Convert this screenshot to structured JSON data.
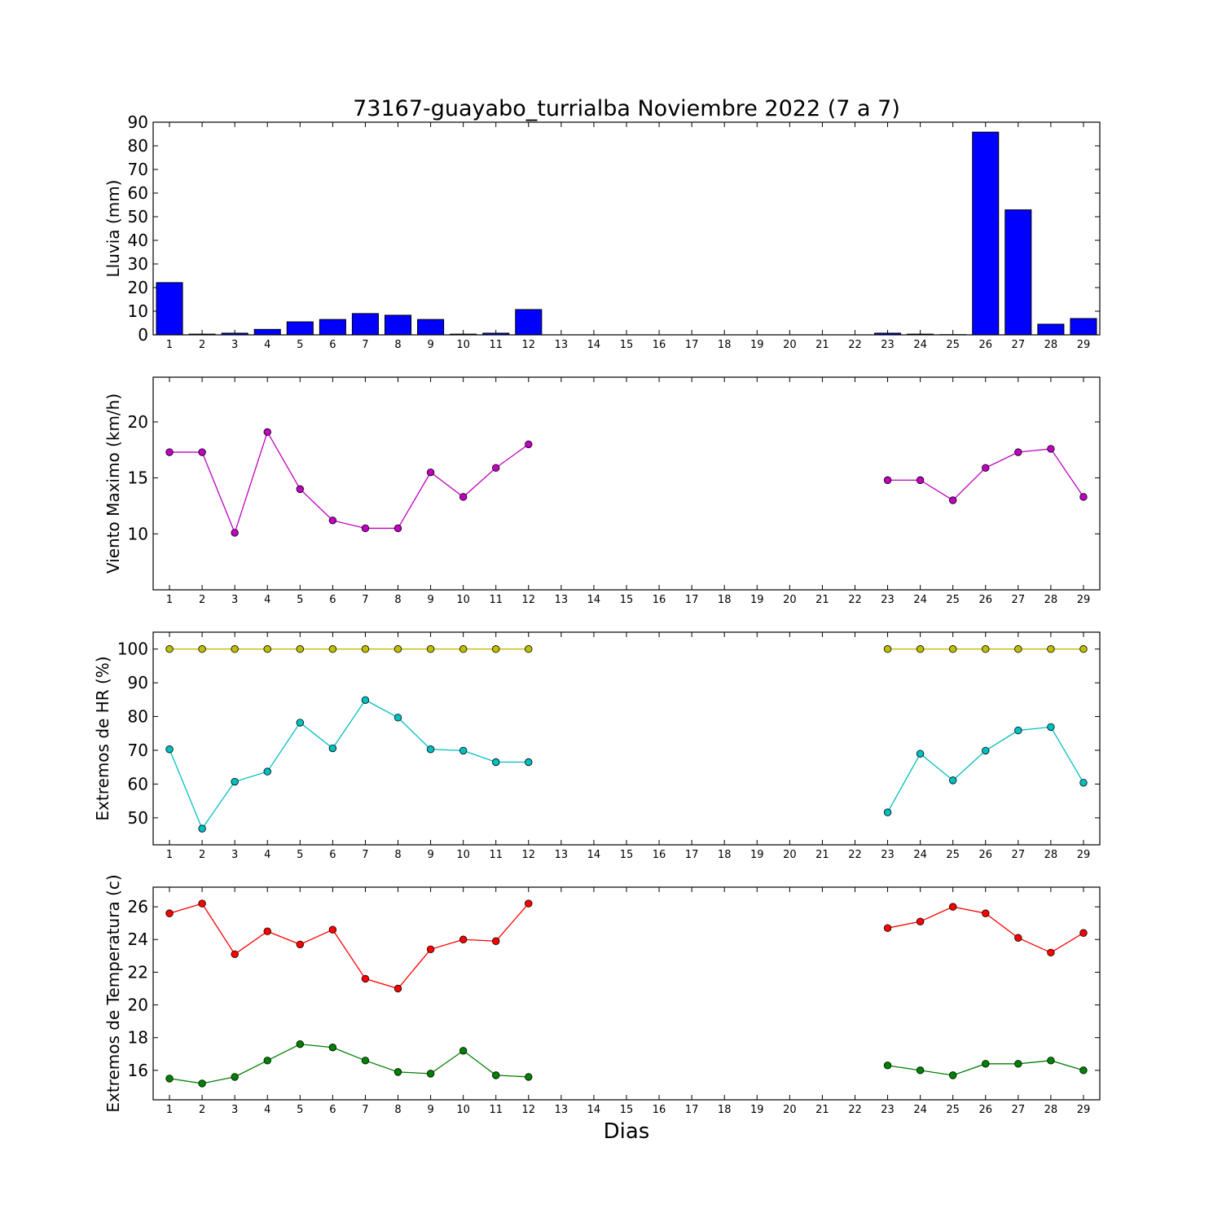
{
  "title": "73167-guayabo_turrialba Noviembre 2022  (7 a 7)",
  "xlabel": "Dias",
  "days": [
    "1",
    "2",
    "3",
    "4",
    "5",
    "6",
    "7",
    "8",
    "9",
    "10",
    "11",
    "12",
    "13",
    "14",
    "15",
    "16",
    "17",
    "18",
    "19",
    "20",
    "21",
    "22",
    "23",
    "24",
    "25",
    "26",
    "27",
    "28",
    "29"
  ],
  "chart_data": [
    {
      "type": "bar",
      "ylabel": "Lluvia (mm)",
      "ylim": [
        0,
        90
      ],
      "yticks": [
        0,
        10,
        20,
        30,
        40,
        50,
        60,
        70,
        80,
        90
      ],
      "color": "#0000ff",
      "values": [
        22.1,
        0.3,
        0.7,
        2.3,
        5.5,
        6.5,
        9.0,
        8.3,
        6.5,
        0.3,
        0.7,
        10.7,
        0,
        0,
        0,
        0,
        0,
        0,
        0,
        0,
        0,
        0,
        0.7,
        0.3,
        0.1,
        85.8,
        52.9,
        4.5,
        6.9
      ]
    },
    {
      "type": "line",
      "ylabel": "Viento Maximo (km/h)",
      "ylim": [
        5,
        24
      ],
      "yticks": [
        10,
        15,
        20
      ],
      "series": [
        {
          "color": "#bf00bf",
          "values": [
            17.3,
            17.3,
            10.1,
            19.1,
            14.0,
            11.2,
            10.5,
            10.5,
            15.5,
            13.3,
            15.9,
            18.0,
            null,
            null,
            null,
            null,
            null,
            null,
            null,
            null,
            null,
            null,
            14.8,
            14.8,
            13.0,
            15.9,
            17.3,
            17.6,
            13.3
          ]
        }
      ]
    },
    {
      "type": "line",
      "ylabel": "Extremos de HR (%)",
      "ylim": [
        42,
        105
      ],
      "yticks": [
        50,
        60,
        70,
        80,
        90,
        100
      ],
      "series": [
        {
          "color": "#bfbf00",
          "values": [
            100,
            100,
            100,
            100,
            100,
            100,
            100,
            100,
            100,
            100,
            100,
            100,
            null,
            null,
            null,
            null,
            null,
            null,
            null,
            null,
            null,
            null,
            100,
            100,
            100,
            100,
            100,
            100,
            100
          ]
        },
        {
          "color": "#00bfbf",
          "values": [
            70.3,
            46.8,
            60.7,
            63.7,
            78.2,
            70.6,
            84.9,
            79.7,
            70.3,
            69.9,
            66.5,
            66.5,
            null,
            null,
            null,
            null,
            null,
            null,
            null,
            null,
            null,
            null,
            51.6,
            69.0,
            61.1,
            69.9,
            75.9,
            76.9,
            60.4
          ]
        }
      ]
    },
    {
      "type": "line",
      "ylabel": "Extremos de Temperatura (c)",
      "ylim": [
        14.2,
        27.2
      ],
      "yticks": [
        16,
        18,
        20,
        22,
        24,
        26
      ],
      "series": [
        {
          "color": "#ff0000",
          "values": [
            25.6,
            26.2,
            23.1,
            24.5,
            23.7,
            24.6,
            21.6,
            21.0,
            23.4,
            24.0,
            23.9,
            26.2,
            null,
            null,
            null,
            null,
            null,
            null,
            null,
            null,
            null,
            null,
            24.7,
            25.1,
            26.0,
            25.6,
            24.1,
            23.2,
            24.4
          ]
        },
        {
          "color": "#008000",
          "values": [
            15.5,
            15.2,
            15.6,
            16.6,
            17.6,
            17.4,
            16.6,
            15.9,
            15.8,
            17.2,
            15.7,
            15.6,
            null,
            null,
            null,
            null,
            null,
            null,
            null,
            null,
            null,
            null,
            16.3,
            16.0,
            15.7,
            16.4,
            16.4,
            16.6,
            16.0
          ]
        }
      ]
    }
  ]
}
